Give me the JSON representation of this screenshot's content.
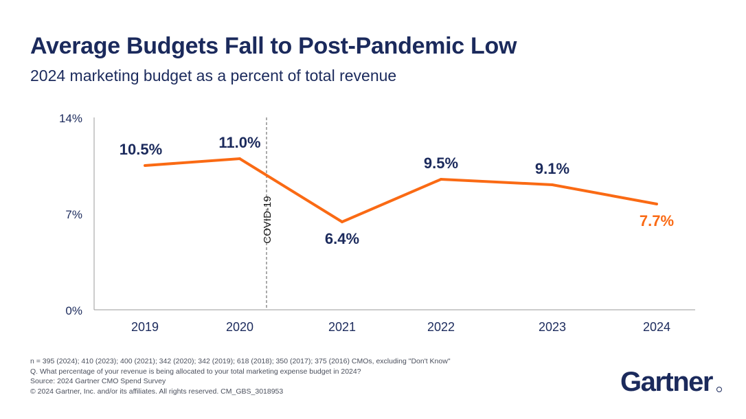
{
  "header": {
    "title": "Average Budgets Fall to Post-Pandemic Low",
    "subtitle": "2024 marketing budget as a percent of total revenue"
  },
  "chart_data": {
    "type": "line",
    "categories": [
      "2019",
      "2020",
      "2021",
      "2022",
      "2023",
      "2024"
    ],
    "series": [
      {
        "values": [
          10.5,
          11.0,
          6.4,
          9.5,
          9.1,
          7.7
        ]
      }
    ],
    "data_labels": [
      "10.5%",
      "11.0%",
      "6.4%",
      "9.5%",
      "9.1%",
      "7.7%"
    ],
    "ylim": [
      0,
      14
    ],
    "y_ticks": [
      {
        "value": 0,
        "label": "0%"
      },
      {
        "value": 7,
        "label": "7%"
      },
      {
        "value": 14,
        "label": "14%"
      }
    ],
    "annotation": {
      "label": "COVID-19",
      "x_between": [
        "2020",
        "2021"
      ],
      "style": "dashed-vertical-line"
    },
    "grid": false,
    "legend": "none",
    "colors": {
      "line": "#fa6a14",
      "highlight_label": "#fa6a14",
      "label": "#1b2a5c",
      "axis": "#9a9a9a",
      "text": "#1b2a5c"
    }
  },
  "footnotes": [
    "n = 395 (2024); 410 (2023); 400 (2021); 342 (2020); 342 (2019); 618 (2018); 350 (2017); 375 (2016) CMOs, excluding \"Don't Know\"",
    "Q. What percentage of your revenue is being allocated to your total marketing expense budget in 2024?",
    "Source: 2024 Gartner CMO Spend Survey",
    "© 2024 Gartner, Inc. and/or its affiliates. All rights reserved. CM_GBS_3018953"
  ],
  "brand": {
    "logo_text": "Gartner"
  }
}
